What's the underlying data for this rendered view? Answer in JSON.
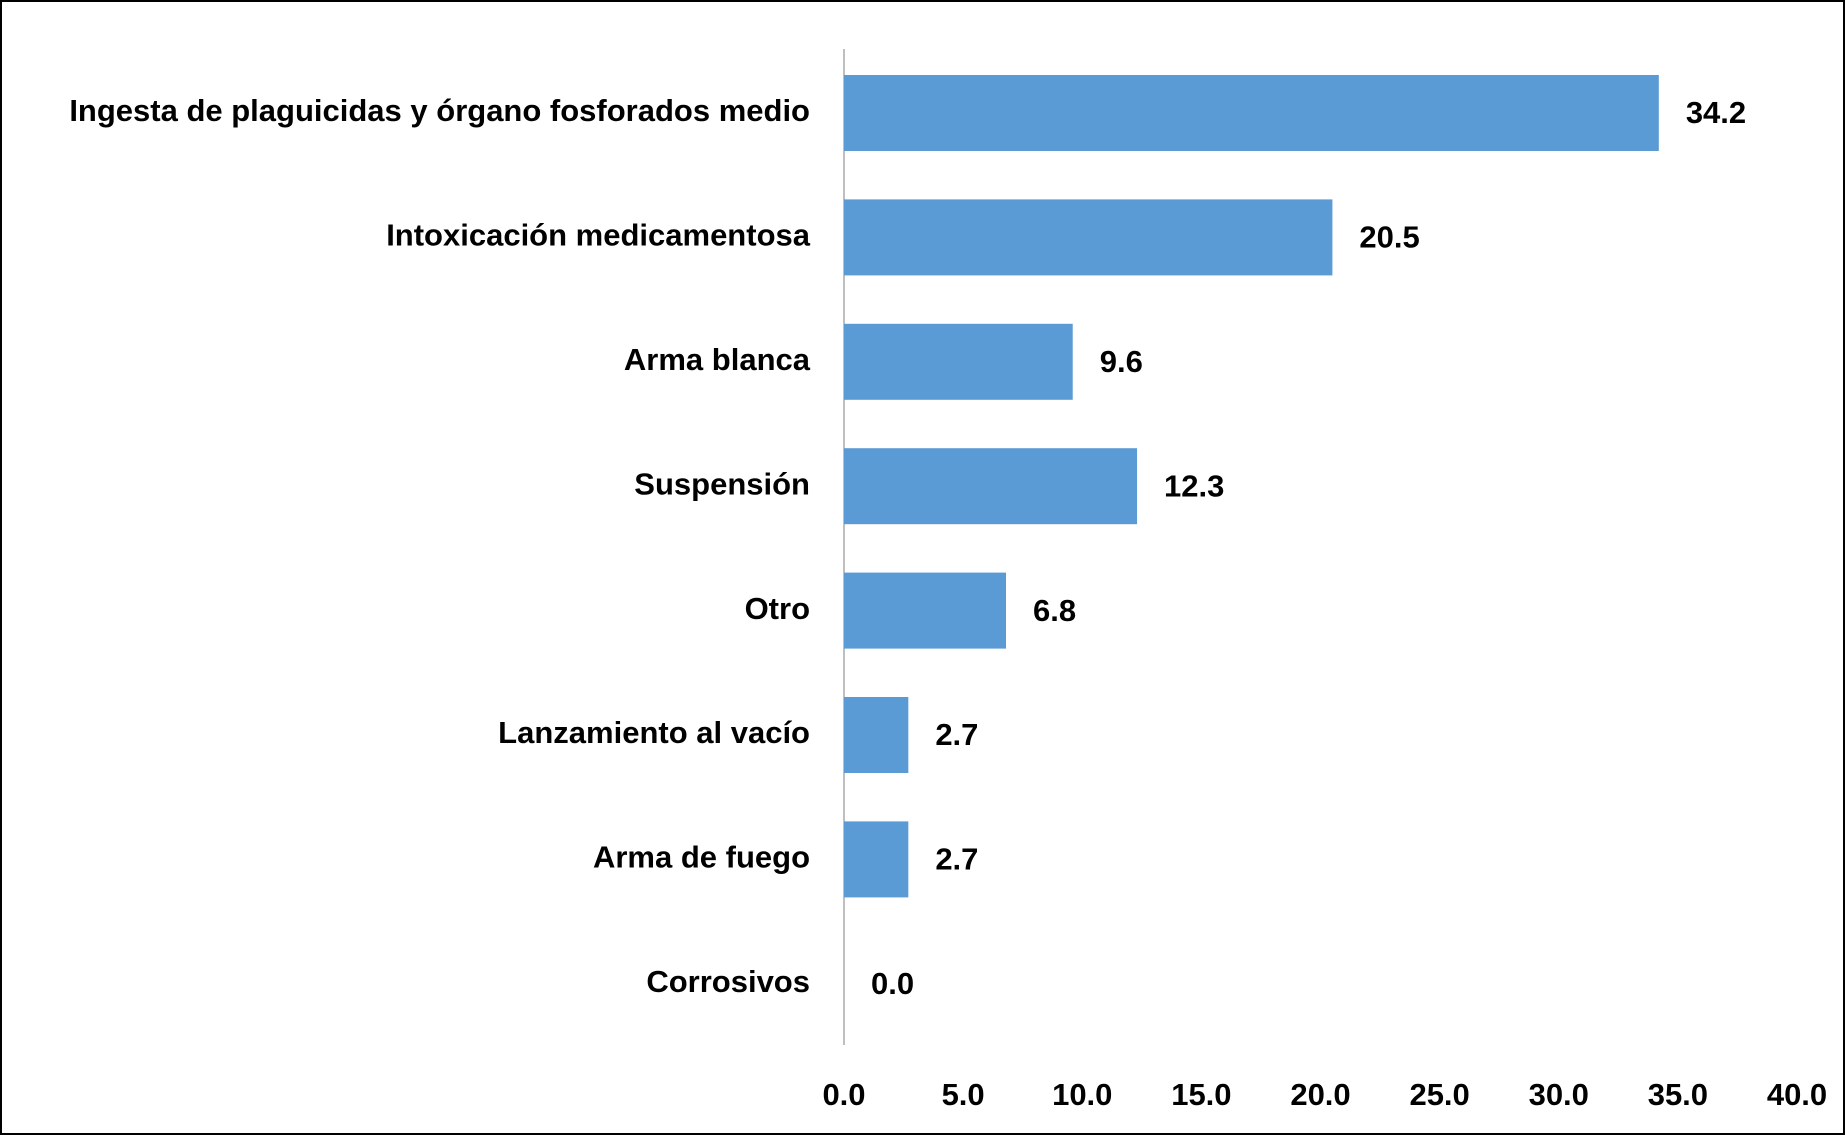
{
  "chart_data": {
    "type": "bar",
    "orientation": "horizontal",
    "categories": [
      "Ingesta de plaguicidas y órgano fosforados medio",
      "Intoxicación medicamentosa",
      "Arma blanca",
      "Suspensión",
      "Otro",
      "Lanzamiento al vacío",
      "Arma de fuego",
      "Corrosivos"
    ],
    "values": [
      34.2,
      20.5,
      9.6,
      12.3,
      6.8,
      2.7,
      2.7,
      0
    ],
    "value_labels": [
      "34.2",
      "20.5",
      "9.6",
      "12.3",
      "6.8",
      "2.7",
      "2.7",
      "0.0"
    ],
    "color": "#5b9bd5",
    "xlim": [
      0,
      40
    ],
    "xticks": [
      {
        "value": 0,
        "label": "0.0"
      },
      {
        "value": 5,
        "label": "5.0"
      },
      {
        "value": 10,
        "label": "10.0"
      },
      {
        "value": 15,
        "label": "15.0"
      },
      {
        "value": 20,
        "label": "20.0"
      },
      {
        "value": 25,
        "label": "25.0"
      },
      {
        "value": 30,
        "label": "30.0"
      },
      {
        "value": 35,
        "label": "35.0"
      },
      {
        "value": 40,
        "label": "40.0"
      }
    ],
    "grid": false
  }
}
